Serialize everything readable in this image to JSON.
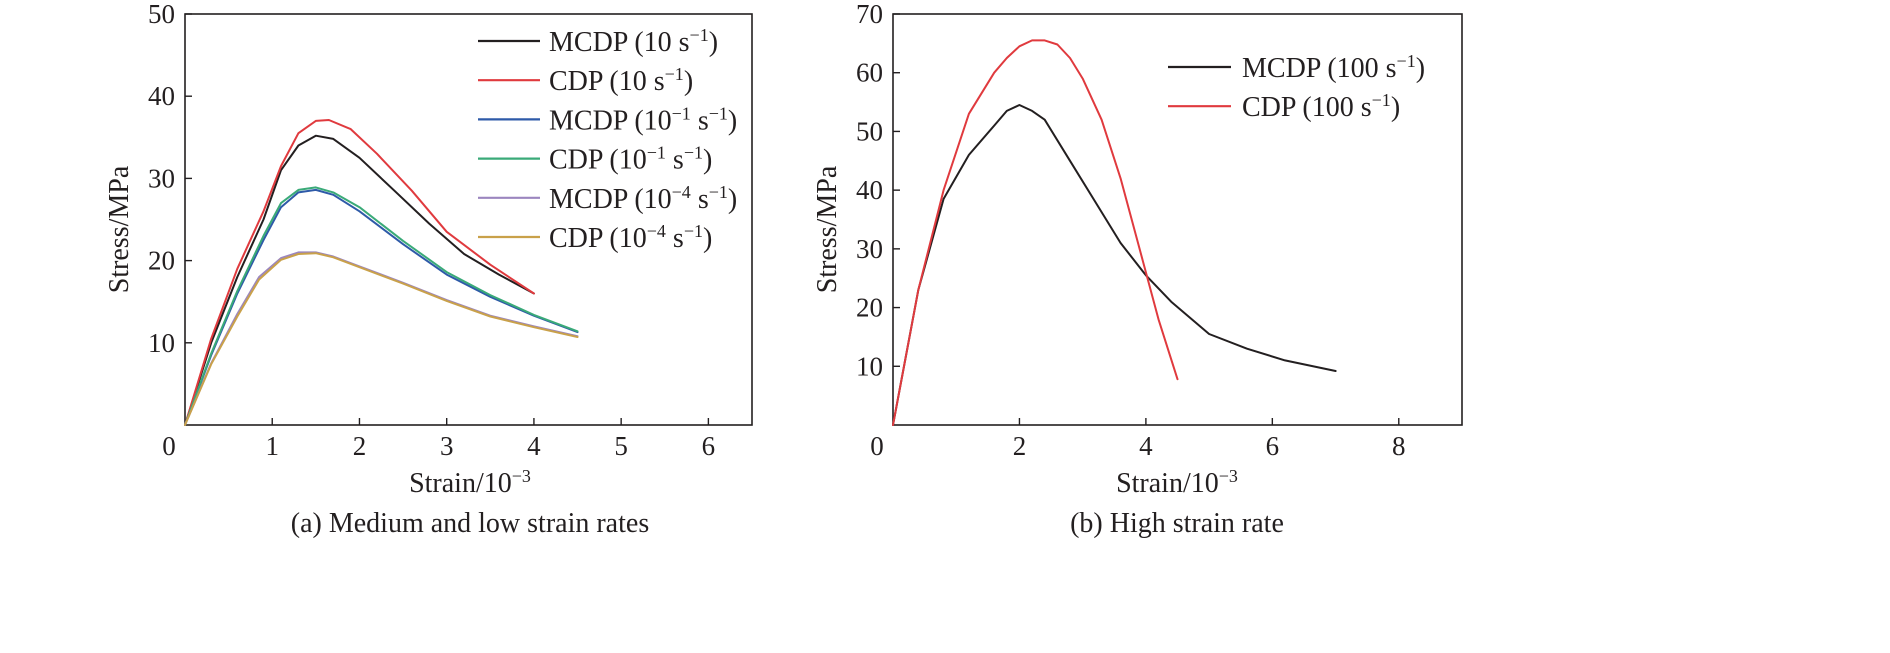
{
  "chart_data": [
    {
      "type": "line",
      "caption": "(a) Medium and low strain rates",
      "xlabel": "Strain/10",
      "xlabel_exp": "−3",
      "ylabel": "Stress/MPa",
      "xlim": [
        0,
        6.5
      ],
      "ylim": [
        0,
        50
      ],
      "xticks": [
        0,
        1,
        2,
        3,
        4,
        5,
        6
      ],
      "yticks": [
        10,
        20,
        30,
        40,
        50
      ],
      "legend_position": "top-right",
      "series": [
        {
          "name": "MCDP (10 s",
          "name_exp": "−1",
          "name_end": ")",
          "color": "#231f20",
          "x": [
            0,
            0.3,
            0.6,
            0.9,
            1.1,
            1.3,
            1.5,
            1.7,
            2.0,
            2.4,
            2.8,
            3.2,
            3.6,
            4.0
          ],
          "y": [
            0,
            10,
            18,
            25,
            31,
            34,
            35.2,
            34.8,
            32.5,
            28.5,
            24.5,
            20.8,
            18.3,
            16
          ]
        },
        {
          "name": "CDP (10 s",
          "name_exp": "−1",
          "name_end": ")",
          "color": "#e03a3e",
          "x": [
            0,
            0.3,
            0.6,
            0.9,
            1.1,
            1.3,
            1.5,
            1.65,
            1.9,
            2.2,
            2.6,
            3.0,
            3.5,
            4.0
          ],
          "y": [
            0,
            10.5,
            19,
            26,
            31.5,
            35.5,
            37,
            37.1,
            36,
            33,
            28.5,
            23.5,
            19.5,
            16
          ]
        },
        {
          "name": "MCDP (10",
          "name_exp": "−1",
          "name_mid": " s",
          "name_exp2": "−1",
          "name_end": ")",
          "color": "#2e5aa8",
          "x": [
            0,
            0.3,
            0.6,
            0.9,
            1.1,
            1.3,
            1.5,
            1.7,
            2.0,
            2.5,
            3.0,
            3.5,
            4.0,
            4.5
          ],
          "y": [
            0,
            8.5,
            16,
            22.5,
            26.5,
            28.3,
            28.6,
            28,
            26,
            22,
            18.3,
            15.6,
            13.3,
            11.3
          ]
        },
        {
          "name": "CDP (10",
          "name_exp": "−1",
          "name_mid": " s",
          "name_exp2": "−1",
          "name_end": ")",
          "color": "#3aaa78",
          "x": [
            0,
            0.3,
            0.6,
            0.9,
            1.1,
            1.3,
            1.5,
            1.7,
            2.0,
            2.5,
            3.0,
            3.5,
            4.0,
            4.5
          ],
          "y": [
            0,
            8.7,
            16.3,
            23,
            27,
            28.6,
            28.9,
            28.3,
            26.5,
            22.4,
            18.6,
            15.8,
            13.4,
            11.4
          ]
        },
        {
          "name": "MCDP (10",
          "name_exp": "−4",
          "name_mid": " s",
          "name_exp2": "−1",
          "name_end": ")",
          "color": "#9b86bf",
          "x": [
            0,
            0.3,
            0.6,
            0.85,
            1.1,
            1.3,
            1.5,
            1.7,
            2.0,
            2.5,
            3.0,
            3.5,
            4.0,
            4.5
          ],
          "y": [
            0,
            7.5,
            13.5,
            18,
            20.3,
            21,
            21,
            20.5,
            19.3,
            17.3,
            15.2,
            13.3,
            12,
            10.8
          ]
        },
        {
          "name": "CDP (10",
          "name_exp": "−4",
          "name_mid": " s",
          "name_exp2": "−1",
          "name_end": ")",
          "color": "#c9a14a",
          "x": [
            0,
            0.3,
            0.6,
            0.85,
            1.1,
            1.3,
            1.5,
            1.7,
            2.0,
            2.5,
            3.0,
            3.5,
            4.0,
            4.5
          ],
          "y": [
            0,
            7.4,
            13.2,
            17.7,
            20.1,
            20.8,
            20.9,
            20.4,
            19.2,
            17.2,
            15.1,
            13.2,
            11.9,
            10.7
          ]
        }
      ]
    },
    {
      "type": "line",
      "caption": "(b) High strain rate",
      "xlabel": "Strain/10",
      "xlabel_exp": "−3",
      "ylabel": "Stress/MPa",
      "xlim": [
        0,
        9
      ],
      "ylim": [
        0,
        70
      ],
      "xticks": [
        0,
        2,
        4,
        6,
        8
      ],
      "yticks": [
        10,
        20,
        30,
        40,
        50,
        60,
        70
      ],
      "legend_position": "top-right",
      "series": [
        {
          "name": "MCDP (100 s",
          "name_exp": "−1",
          "name_end": ")",
          "color": "#231f20",
          "x": [
            0,
            0.4,
            0.8,
            1.2,
            1.6,
            1.8,
            2.0,
            2.2,
            2.4,
            2.8,
            3.2,
            3.6,
            4.0,
            4.4,
            5.0,
            5.6,
            6.2,
            7.0
          ],
          "y": [
            0,
            23,
            38.5,
            46,
            51,
            53.5,
            54.5,
            53.5,
            52,
            45,
            38,
            31,
            25.5,
            21,
            15.5,
            13,
            11,
            9.2
          ]
        },
        {
          "name": "CDP (100 s",
          "name_exp": "−1",
          "name_end": ")",
          "color": "#e03a3e",
          "x": [
            0,
            0.4,
            0.8,
            1.2,
            1.6,
            1.8,
            2.0,
            2.2,
            2.4,
            2.6,
            2.8,
            3.0,
            3.3,
            3.6,
            3.9,
            4.2,
            4.5
          ],
          "y": [
            0,
            23,
            40,
            53,
            60,
            62.5,
            64.5,
            65.5,
            65.5,
            64.8,
            62.5,
            59,
            52,
            42,
            30,
            18,
            7.8
          ]
        }
      ]
    }
  ]
}
